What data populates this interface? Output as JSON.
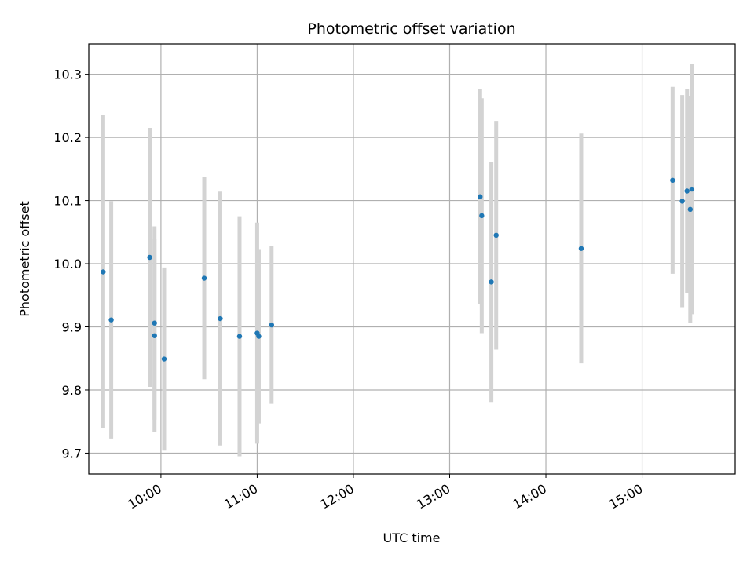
{
  "chart_data": {
    "type": "scatter",
    "title": "Photometric offset variation",
    "xlabel": "UTC time",
    "ylabel": "Photometric offset",
    "x_ticks": [
      "10:00",
      "11:00",
      "12:00",
      "13:00",
      "14:00",
      "15:00"
    ],
    "y_ticks": [
      "9.7",
      "9.8",
      "9.9",
      "10.0",
      "10.1",
      "10.2",
      "10.3"
    ],
    "xlim": [
      "09:15",
      "15:58"
    ],
    "ylim": [
      9.667,
      10.348
    ],
    "grid": true,
    "marker_color": "#1f77b4",
    "errorbar_color": "#d3d3d3",
    "points": [
      {
        "x": "09:24",
        "y": 9.987,
        "err": 0.248
      },
      {
        "x": "09:29",
        "y": 9.911,
        "err": 0.188
      },
      {
        "x": "09:53",
        "y": 10.01,
        "err": 0.205
      },
      {
        "x": "09:56",
        "y": 9.906,
        "err": 0.153
      },
      {
        "x": "09:56",
        "y": 9.886,
        "err": 0.153
      },
      {
        "x": "10:02",
        "y": 9.849,
        "err": 0.145
      },
      {
        "x": "10:27",
        "y": 9.977,
        "err": 0.16
      },
      {
        "x": "10:37",
        "y": 9.913,
        "err": 0.201
      },
      {
        "x": "10:49",
        "y": 9.885,
        "err": 0.19
      },
      {
        "x": "11:00",
        "y": 9.89,
        "err": 0.175
      },
      {
        "x": "11:01",
        "y": 9.885,
        "err": 0.138
      },
      {
        "x": "11:09",
        "y": 9.903,
        "err": 0.125
      },
      {
        "x": "13:19",
        "y": 10.106,
        "err": 0.17
      },
      {
        "x": "13:20",
        "y": 10.076,
        "err": 0.186
      },
      {
        "x": "13:26",
        "y": 9.971,
        "err": 0.19
      },
      {
        "x": "13:29",
        "y": 10.045,
        "err": 0.181
      },
      {
        "x": "14:22",
        "y": 10.024,
        "err": 0.182
      },
      {
        "x": "15:19",
        "y": 10.132,
        "err": 0.148
      },
      {
        "x": "15:25",
        "y": 10.099,
        "err": 0.168
      },
      {
        "x": "15:28",
        "y": 10.115,
        "err": 0.162
      },
      {
        "x": "15:30",
        "y": 10.086,
        "err": 0.18
      },
      {
        "x": "15:31",
        "y": 10.118,
        "err": 0.198
      }
    ]
  }
}
